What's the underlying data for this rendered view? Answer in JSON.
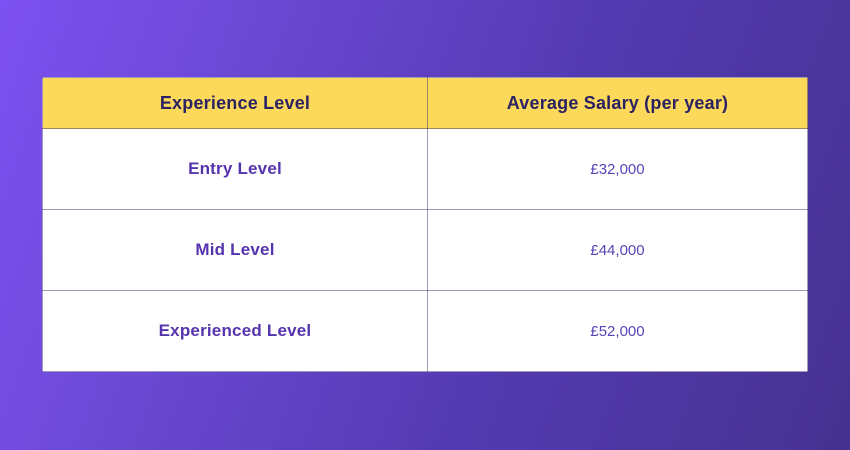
{
  "colors": {
    "background_gradient_start": "#7d51f2",
    "background_gradient_end": "#463290",
    "header_background": "#fdd95b",
    "header_text": "#2b2262",
    "level_text": "#5534ad",
    "salary_text": "#5a43b8",
    "cell_background": "#ffffff",
    "border": "rgba(45,35,95,0.45)"
  },
  "table": {
    "headers": [
      "Experience Level",
      "Average Salary (per year)"
    ],
    "rows": [
      {
        "level": "Entry Level",
        "salary": "£32,000"
      },
      {
        "level": "Mid Level",
        "salary": "£44,000"
      },
      {
        "level": "Experienced Level",
        "salary": "£52,000"
      }
    ]
  },
  "chart_data": {
    "type": "table",
    "title": "",
    "columns": [
      "Experience Level",
      "Average Salary (per year)"
    ],
    "rows": [
      [
        "Entry Level",
        "£32,000"
      ],
      [
        "Mid Level",
        "£44,000"
      ],
      [
        "Experienced Level",
        "£52,000"
      ]
    ],
    "categories": [
      "Entry Level",
      "Mid Level",
      "Experienced Level"
    ],
    "values": [
      32000,
      44000,
      52000
    ],
    "value_unit": "GBP per year"
  }
}
